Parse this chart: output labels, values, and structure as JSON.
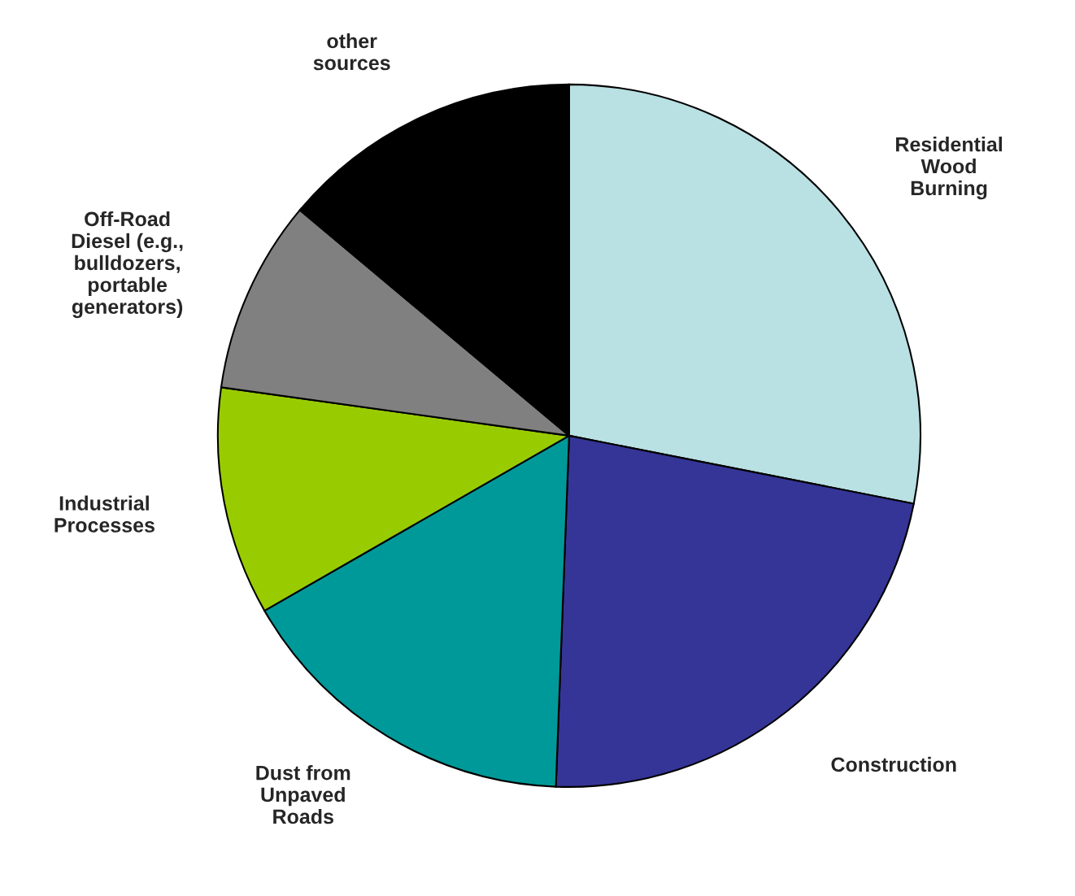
{
  "chart_data": {
    "type": "pie",
    "categories": [
      "Residential\nWood\nBurning",
      "Construction",
      "Dust from\nUnpaved\nRoads",
      "Industrial\nProcesses",
      "Off-Road\nDiesel (e.g.,\nbulldozers,\nportable\ngenerators)",
      "other\nsources"
    ],
    "values": [
      28.1,
      22.5,
      16.1,
      10.5,
      8.9,
      13.9
    ],
    "colors": [
      "#b9e0e3",
      "#353597",
      "#009999",
      "#99cc00",
      "#808080",
      "#000000"
    ]
  }
}
